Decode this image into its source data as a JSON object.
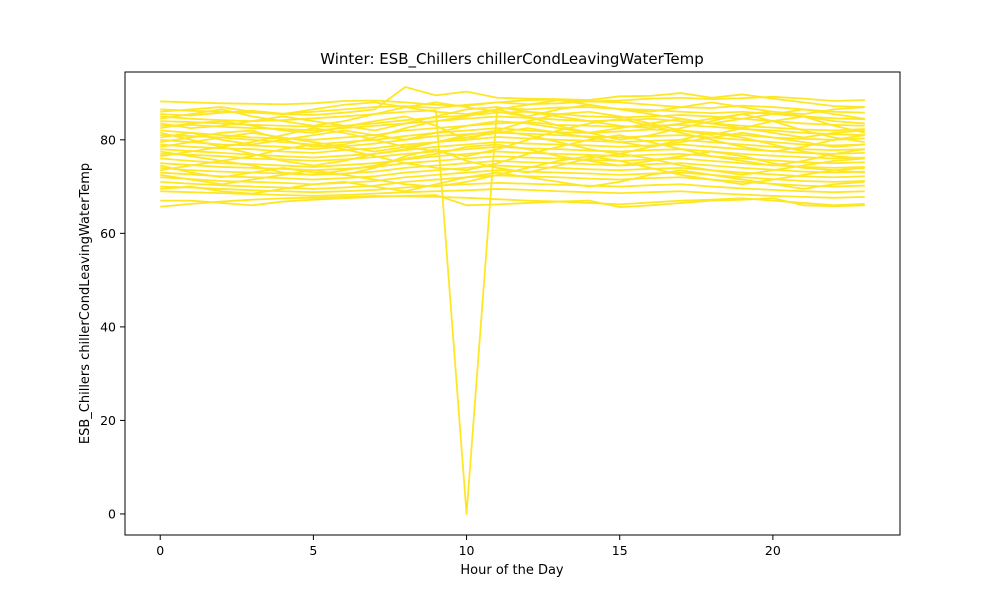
{
  "chart_data": {
    "type": "line",
    "title": "Winter: ESB_Chillers chillerCondLeavingWaterTemp",
    "xlabel": "Hour of the Day",
    "ylabel": "ESB_Chillers chillerCondLeavingWaterTemp",
    "xlim": [
      -1.15,
      24.15
    ],
    "ylim": [
      -4.5,
      94.5
    ],
    "xticks": [
      0,
      5,
      10,
      15,
      20
    ],
    "yticks": [
      0,
      20,
      40,
      60,
      80
    ],
    "grid": false,
    "legend": "none",
    "line_color": "#fde725",
    "x": [
      0,
      1,
      2,
      3,
      4,
      5,
      6,
      7,
      8,
      9,
      10,
      11,
      12,
      13,
      14,
      15,
      16,
      17,
      18,
      19,
      20,
      21,
      22,
      23
    ],
    "series": [
      {
        "values": [
          88.2,
          88.0,
          87.8,
          87.7,
          87.6,
          87.8,
          88.3,
          88.4,
          88.0,
          87.5,
          87.3,
          88.0,
          88.5,
          88.6,
          88.2,
          88.4,
          88.8,
          89.0,
          88.7,
          88.9,
          89.2,
          88.8,
          88.3,
          88.5
        ]
      },
      {
        "values": [
          86.5,
          86.2,
          86.0,
          85.8,
          85.5,
          85.3,
          85.8,
          86.5,
          91.3,
          89.5,
          90.3,
          89.0,
          88.8,
          88.7,
          88.5,
          89.3,
          89.4,
          90.0,
          89.0,
          89.7,
          88.8,
          88.0,
          87.2,
          87.0
        ]
      },
      {
        "values": [
          85.0,
          84.5,
          84.2,
          84.0,
          84.2,
          84.6,
          85.0,
          85.5,
          86.0,
          86.3,
          0.0,
          86.8,
          86.5,
          86.9,
          87.0,
          86.6,
          86.4,
          86.0,
          85.7,
          86.0,
          85.5,
          85.0,
          84.6,
          84.4
        ]
      },
      {
        "values": [
          84.0,
          83.8,
          83.5,
          83.2,
          83.0,
          82.8,
          83.0,
          83.5,
          84.2,
          84.8,
          85.2,
          85.8,
          86.0,
          85.5,
          85.0,
          84.8,
          85.0,
          85.3,
          85.0,
          84.5,
          84.0,
          83.5,
          83.2,
          83.0
        ]
      },
      {
        "values": [
          83.0,
          83.2,
          82.8,
          82.5,
          82.3,
          82.0,
          82.5,
          83.0,
          83.5,
          84.0,
          84.5,
          85.0,
          84.7,
          84.3,
          84.0,
          84.2,
          84.5,
          84.0,
          83.5,
          83.0,
          82.6,
          82.2,
          82.0,
          82.3
        ]
      },
      {
        "values": [
          82.0,
          81.5,
          81.0,
          80.5,
          80.3,
          80.0,
          80.5,
          81.0,
          82.0,
          82.5,
          83.0,
          83.5,
          83.8,
          83.2,
          83.0,
          82.8,
          83.0,
          83.2,
          82.8,
          82.3,
          82.0,
          81.5,
          81.2,
          81.0
        ]
      },
      {
        "values": [
          81.0,
          80.8,
          80.5,
          80.0,
          79.5,
          79.0,
          79.5,
          80.0,
          80.8,
          81.5,
          82.0,
          82.5,
          82.0,
          81.6,
          81.5,
          81.8,
          82.2,
          82.0,
          81.5,
          81.0,
          80.5,
          80.2,
          80.0,
          80.3
        ]
      },
      {
        "values": [
          80.0,
          79.5,
          79.0,
          78.8,
          78.5,
          78.0,
          78.6,
          79.2,
          80.0,
          80.8,
          81.2,
          81.5,
          81.3,
          81.0,
          80.7,
          80.5,
          80.8,
          81.0,
          80.5,
          80.0,
          79.5,
          79.0,
          78.8,
          79.0
        ]
      },
      {
        "values": [
          79.0,
          78.5,
          78.2,
          78.0,
          77.5,
          77.2,
          77.8,
          78.2,
          79.0,
          79.5,
          80.0,
          80.6,
          80.3,
          80.0,
          79.8,
          79.5,
          79.8,
          80.0,
          79.5,
          79.0,
          78.5,
          78.0,
          77.8,
          78.0
        ]
      },
      {
        "values": [
          78.0,
          77.6,
          77.2,
          76.8,
          76.5,
          76.2,
          76.6,
          77.0,
          77.8,
          78.5,
          79.0,
          79.5,
          79.2,
          79.0,
          78.8,
          78.5,
          78.8,
          79.0,
          78.5,
          78.0,
          77.6,
          77.2,
          77.0,
          77.2
        ]
      },
      {
        "values": [
          77.0,
          76.8,
          76.5,
          76.0,
          75.8,
          75.5,
          75.8,
          76.3,
          77.0,
          77.5,
          78.0,
          78.5,
          78.2,
          78.0,
          77.7,
          77.5,
          77.8,
          78.0,
          77.5,
          77.0,
          76.6,
          76.3,
          76.0,
          76.2
        ]
      },
      {
        "values": [
          76.0,
          75.5,
          75.0,
          74.8,
          74.5,
          74.2,
          74.6,
          75.0,
          75.8,
          76.5,
          77.0,
          77.5,
          77.2,
          77.0,
          76.8,
          76.5,
          76.8,
          77.0,
          76.5,
          76.0,
          75.6,
          75.2,
          75.0,
          75.2
        ]
      },
      {
        "values": [
          75.0,
          74.6,
          74.2,
          74.0,
          73.8,
          73.5,
          73.8,
          74.2,
          75.0,
          75.5,
          76.0,
          76.5,
          76.2,
          76.0,
          75.7,
          75.5,
          75.8,
          76.0,
          75.5,
          75.0,
          74.6,
          74.2,
          74.0,
          74.2
        ]
      },
      {
        "values": [
          74.0,
          73.5,
          73.2,
          73.0,
          72.8,
          72.5,
          72.8,
          73.2,
          74.0,
          74.5,
          75.0,
          75.5,
          75.2,
          75.0,
          74.8,
          74.5,
          74.8,
          75.0,
          74.5,
          74.0,
          73.6,
          73.2,
          73.0,
          73.2
        ]
      },
      {
        "values": [
          73.0,
          72.6,
          72.2,
          72.0,
          71.8,
          71.5,
          71.8,
          72.2,
          73.0,
          73.5,
          74.0,
          74.5,
          74.2,
          74.0,
          73.7,
          73.5,
          73.8,
          74.0,
          73.5,
          73.0,
          72.6,
          72.2,
          72.0,
          72.2
        ]
      },
      {
        "values": [
          72.0,
          71.6,
          71.2,
          71.0,
          70.8,
          70.5,
          70.8,
          71.2,
          72.0,
          72.5,
          73.0,
          73.5,
          73.2,
          73.0,
          72.8,
          72.5,
          72.8,
          73.0,
          72.5,
          72.0,
          71.6,
          71.2,
          71.0,
          71.2
        ]
      },
      {
        "values": [
          71.0,
          70.6,
          70.3,
          70.0,
          69.8,
          69.5,
          69.8,
          70.2,
          71.0,
          71.5,
          72.0,
          72.4,
          72.2,
          72.0,
          71.7,
          71.5,
          71.8,
          72.0,
          71.5,
          71.0,
          70.6,
          70.2,
          70.0,
          70.2
        ]
      },
      {
        "values": [
          70.0,
          69.8,
          69.5,
          69.2,
          69.0,
          68.8,
          69.0,
          69.3,
          69.8,
          70.2,
          70.5,
          70.8,
          70.6,
          70.4,
          70.2,
          70.0,
          70.3,
          70.5,
          70.0,
          69.6,
          69.3,
          69.0,
          68.8,
          69.0
        ]
      },
      {
        "values": [
          69.0,
          68.8,
          68.6,
          68.4,
          68.2,
          68.0,
          68.2,
          68.5,
          68.8,
          69.0,
          69.2,
          69.5,
          69.3,
          69.0,
          68.8,
          68.6,
          68.8,
          69.0,
          68.6,
          68.3,
          68.0,
          67.8,
          67.6,
          67.8
        ]
      },
      {
        "values": [
          65.7,
          66.3,
          66.8,
          67.2,
          67.5,
          67.6,
          67.8,
          68.0,
          67.9,
          67.8,
          67.6,
          67.3,
          67.0,
          66.8,
          66.5,
          66.2,
          66.6,
          67.0,
          67.2,
          67.5,
          67.0,
          66.5,
          66.0,
          66.3
        ]
      },
      {
        "values": [
          67.0,
          67.0,
          66.5,
          66.0,
          66.8,
          67.2,
          67.5,
          67.8,
          68.0,
          68.2,
          66.0,
          66.2,
          66.5,
          66.8,
          67.0,
          65.6,
          66.0,
          66.5,
          67.0,
          67.2,
          67.5,
          66.0,
          65.8,
          66.0
        ]
      },
      {
        "values": [
          85.5,
          85.2,
          85.8,
          86.2,
          85.6,
          86.0,
          86.5,
          87.0,
          87.2,
          86.8,
          87.5,
          88.0,
          87.6,
          87.8,
          88.2,
          88.0,
          87.5,
          87.0,
          86.8,
          87.3,
          87.0,
          86.5,
          86.0,
          85.8
        ]
      },
      {
        "values": [
          82.5,
          83.5,
          84.0,
          83.0,
          82.0,
          81.5,
          82.8,
          84.0,
          85.0,
          83.0,
          80.0,
          82.0,
          84.0,
          85.5,
          86.0,
          85.0,
          83.5,
          82.0,
          81.0,
          82.5,
          84.0,
          85.0,
          83.0,
          81.5
        ]
      },
      {
        "values": [
          79.5,
          80.5,
          81.5,
          82.0,
          80.0,
          78.5,
          79.0,
          80.5,
          82.5,
          84.0,
          85.0,
          86.5,
          85.0,
          83.0,
          81.5,
          80.0,
          81.0,
          82.5,
          84.0,
          85.5,
          84.0,
          82.0,
          80.5,
          79.5
        ]
      },
      {
        "values": [
          76.5,
          77.5,
          78.5,
          77.0,
          75.5,
          74.5,
          75.5,
          77.0,
          78.0,
          79.5,
          81.0,
          82.0,
          81.0,
          79.5,
          78.0,
          77.0,
          78.5,
          80.0,
          81.5,
          80.5,
          79.0,
          77.5,
          76.5,
          76.0
        ]
      },
      {
        "values": [
          73.5,
          74.5,
          75.5,
          74.5,
          73.0,
          72.5,
          73.5,
          74.5,
          76.0,
          77.0,
          78.5,
          79.0,
          78.0,
          76.5,
          75.5,
          74.5,
          75.5,
          76.5,
          77.5,
          76.5,
          75.0,
          74.0,
          73.5,
          73.0
        ]
      },
      {
        "values": [
          81.5,
          80.0,
          78.5,
          79.5,
          81.0,
          82.5,
          81.5,
          80.0,
          78.5,
          77.5,
          76.5,
          78.0,
          80.0,
          82.0,
          83.5,
          84.5,
          83.0,
          81.5,
          80.0,
          78.5,
          77.5,
          78.5,
          80.0,
          81.0
        ]
      },
      {
        "values": [
          77.5,
          76.5,
          75.5,
          76.5,
          78.0,
          79.0,
          78.0,
          76.5,
          75.0,
          74.0,
          73.5,
          75.0,
          77.0,
          78.5,
          80.0,
          81.0,
          79.5,
          78.0,
          76.5,
          75.5,
          74.5,
          75.5,
          77.0,
          78.0
        ]
      },
      {
        "values": [
          72.5,
          71.5,
          70.5,
          71.5,
          72.5,
          73.5,
          72.5,
          71.5,
          70.5,
          70.0,
          71.0,
          72.5,
          74.0,
          75.5,
          76.5,
          75.5,
          74.0,
          72.5,
          71.5,
          70.5,
          71.5,
          72.5,
          73.5,
          74.0
        ]
      },
      {
        "values": [
          84.5,
          85.5,
          86.5,
          85.0,
          84.0,
          83.0,
          84.0,
          85.5,
          87.0,
          88.0,
          87.0,
          86.0,
          85.0,
          86.5,
          87.5,
          86.5,
          85.5,
          84.5,
          83.5,
          84.5,
          85.5,
          86.5,
          85.5,
          84.5
        ]
      },
      {
        "values": [
          83.5,
          82.5,
          83.0,
          84.0,
          85.0,
          84.0,
          83.0,
          82.0,
          83.5,
          85.0,
          86.5,
          87.0,
          86.0,
          85.0,
          84.0,
          83.0,
          82.5,
          83.5,
          84.5,
          85.5,
          86.0,
          85.0,
          84.0,
          83.5
        ]
      },
      {
        "values": [
          80.5,
          81.5,
          80.0,
          79.0,
          80.0,
          81.0,
          82.0,
          81.0,
          80.0,
          81.5,
          83.0,
          84.0,
          83.5,
          82.5,
          81.5,
          82.5,
          83.5,
          84.5,
          83.5,
          82.5,
          81.5,
          80.5,
          81.5,
          82.0
        ]
      },
      {
        "values": [
          69.5,
          70.0,
          69.0,
          68.5,
          69.5,
          70.5,
          71.0,
          70.0,
          69.0,
          70.5,
          72.0,
          73.0,
          72.0,
          71.0,
          70.0,
          71.0,
          72.5,
          73.5,
          72.5,
          71.5,
          70.5,
          69.5,
          70.5,
          71.0
        ]
      },
      {
        "values": [
          74.5,
          73.0,
          72.0,
          73.0,
          74.0,
          73.0,
          72.5,
          74.0,
          76.5,
          78.0,
          75.5,
          74.0,
          73.0,
          74.5,
          76.0,
          77.0,
          76.0,
          74.5,
          73.5,
          72.5,
          73.5,
          74.5,
          75.5,
          76.0
        ]
      },
      {
        "values": [
          86.0,
          86.5,
          87.0,
          86.0,
          85.5,
          86.5,
          87.5,
          88.0,
          87.0,
          86.0,
          85.5,
          86.5,
          87.5,
          88.5,
          87.5,
          86.5,
          86.0,
          87.0,
          88.0,
          87.0,
          86.0,
          85.5,
          86.5,
          87.0
        ]
      },
      {
        "values": [
          78.5,
          79.5,
          80.5,
          81.5,
          80.5,
          79.5,
          78.5,
          77.5,
          78.5,
          79.5,
          80.5,
          81.5,
          82.5,
          81.5,
          80.5,
          79.5,
          78.5,
          79.5,
          80.5,
          81.5,
          80.5,
          79.5,
          78.5,
          79.0
        ]
      }
    ]
  }
}
